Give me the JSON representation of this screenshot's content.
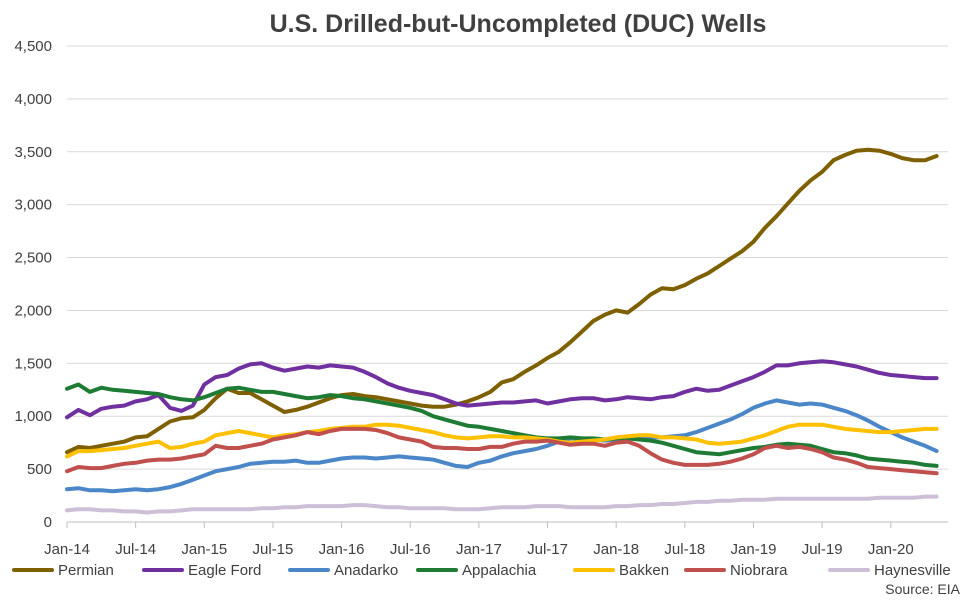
{
  "chart_data": {
    "type": "line",
    "title": "U.S. Drilled-but-Uncompleted (DUC) Wells",
    "source": "Source: EIA",
    "xlabel": "",
    "ylabel": "",
    "ylim": [
      0,
      4500
    ],
    "y_ticks": [
      0,
      500,
      1000,
      1500,
      2000,
      2500,
      3000,
      3500,
      4000,
      4500
    ],
    "y_tick_labels": [
      "0",
      "500",
      "1,000",
      "1,500",
      "2,000",
      "2,500",
      "3,000",
      "3,500",
      "4,000",
      "4,500"
    ],
    "x_tick_labels": [
      "Jan-14",
      "Jul-14",
      "Jan-15",
      "Jul-15",
      "Jan-16",
      "Jul-16",
      "Jan-17",
      "Jul-17",
      "Jan-18",
      "Jul-18",
      "Jan-19",
      "Jul-19",
      "Jan-20"
    ],
    "x_tick_months": [
      0,
      6,
      12,
      18,
      24,
      30,
      36,
      42,
      48,
      54,
      60,
      66,
      72
    ],
    "x_range_months": [
      0,
      77
    ],
    "grid": "horizontal",
    "legend_position": "bottom",
    "months": [
      "Jan-14",
      "Feb-14",
      "Mar-14",
      "Apr-14",
      "May-14",
      "Jun-14",
      "Jul-14",
      "Aug-14",
      "Sep-14",
      "Oct-14",
      "Nov-14",
      "Dec-14",
      "Jan-15",
      "Feb-15",
      "Mar-15",
      "Apr-15",
      "May-15",
      "Jun-15",
      "Jul-15",
      "Aug-15",
      "Sep-15",
      "Oct-15",
      "Nov-15",
      "Dec-15",
      "Jan-16",
      "Feb-16",
      "Mar-16",
      "Apr-16",
      "May-16",
      "Jun-16",
      "Jul-16",
      "Aug-16",
      "Sep-16",
      "Oct-16",
      "Nov-16",
      "Dec-16",
      "Jan-17",
      "Feb-17",
      "Mar-17",
      "Apr-17",
      "May-17",
      "Jun-17",
      "Jul-17",
      "Aug-17",
      "Sep-17",
      "Oct-17",
      "Nov-17",
      "Dec-17",
      "Jan-18",
      "Feb-18",
      "Mar-18",
      "Apr-18",
      "May-18",
      "Jun-18",
      "Jul-18",
      "Aug-18",
      "Sep-18",
      "Oct-18",
      "Nov-18",
      "Dec-18",
      "Jan-19",
      "Feb-19",
      "Mar-19",
      "Apr-19",
      "May-19",
      "Jun-19",
      "Jul-19",
      "Aug-19",
      "Sep-19",
      "Oct-19",
      "Nov-19",
      "Dec-19",
      "Jan-20",
      "Feb-20",
      "Mar-20",
      "Apr-20",
      "May-20"
    ],
    "series": [
      {
        "name": "Permian",
        "color": "#7f6000",
        "values": [
          660,
          710,
          700,
          720,
          740,
          760,
          800,
          810,
          880,
          950,
          980,
          990,
          1060,
          1170,
          1260,
          1220,
          1220,
          1160,
          1100,
          1040,
          1060,
          1090,
          1130,
          1170,
          1200,
          1210,
          1190,
          1180,
          1160,
          1140,
          1120,
          1100,
          1090,
          1090,
          1110,
          1140,
          1180,
          1230,
          1320,
          1350,
          1420,
          1480,
          1550,
          1610,
          1700,
          1800,
          1900,
          1960,
          2000,
          1980,
          2060,
          2150,
          2210,
          2200,
          2240,
          2300,
          2350,
          2420,
          2490,
          2560,
          2650,
          2780,
          2890,
          3010,
          3130,
          3230,
          3310,
          3420,
          3470,
          3510,
          3520,
          3510,
          3480,
          3440,
          3420,
          3420,
          3460
        ]
      },
      {
        "name": "Eagle Ford",
        "color": "#7030a0",
        "values": [
          990,
          1060,
          1010,
          1070,
          1090,
          1100,
          1140,
          1160,
          1200,
          1080,
          1050,
          1100,
          1300,
          1370,
          1390,
          1450,
          1490,
          1500,
          1460,
          1430,
          1450,
          1470,
          1460,
          1480,
          1470,
          1460,
          1420,
          1370,
          1310,
          1270,
          1240,
          1220,
          1200,
          1160,
          1120,
          1100,
          1110,
          1120,
          1130,
          1130,
          1140,
          1150,
          1120,
          1140,
          1160,
          1170,
          1170,
          1150,
          1160,
          1180,
          1170,
          1160,
          1180,
          1190,
          1230,
          1260,
          1240,
          1250,
          1290,
          1330,
          1370,
          1420,
          1480,
          1480,
          1500,
          1510,
          1520,
          1510,
          1490,
          1470,
          1440,
          1410,
          1390,
          1380,
          1370,
          1360,
          1360
        ]
      },
      {
        "name": "Anadarko",
        "color": "#4a86c8",
        "values": [
          310,
          320,
          300,
          300,
          290,
          300,
          310,
          300,
          310,
          330,
          360,
          400,
          440,
          480,
          500,
          520,
          550,
          560,
          570,
          570,
          580,
          560,
          560,
          580,
          600,
          610,
          610,
          600,
          610,
          620,
          610,
          600,
          590,
          560,
          530,
          520,
          560,
          580,
          620,
          650,
          670,
          690,
          720,
          760,
          790,
          790,
          780,
          770,
          780,
          790,
          800,
          800,
          800,
          810,
          820,
          850,
          890,
          930,
          970,
          1020,
          1080,
          1120,
          1150,
          1130,
          1110,
          1120,
          1110,
          1080,
          1050,
          1010,
          960,
          900,
          850,
          800,
          760,
          720,
          670
        ]
      },
      {
        "name": "Appalachia",
        "color": "#1e7b34",
        "values": [
          1260,
          1300,
          1230,
          1270,
          1250,
          1240,
          1230,
          1220,
          1210,
          1180,
          1160,
          1150,
          1180,
          1220,
          1260,
          1270,
          1250,
          1230,
          1230,
          1210,
          1190,
          1170,
          1180,
          1200,
          1190,
          1170,
          1160,
          1140,
          1120,
          1100,
          1080,
          1050,
          1000,
          970,
          940,
          910,
          900,
          880,
          860,
          840,
          820,
          800,
          790,
          790,
          800,
          790,
          790,
          780,
          790,
          790,
          780,
          770,
          750,
          720,
          690,
          660,
          650,
          640,
          660,
          680,
          700,
          710,
          730,
          740,
          730,
          720,
          690,
          660,
          650,
          630,
          600,
          590,
          580,
          570,
          560,
          540,
          530
        ]
      },
      {
        "name": "Bakken",
        "color": "#ffc000",
        "values": [
          620,
          670,
          670,
          680,
          690,
          700,
          720,
          740,
          760,
          700,
          710,
          740,
          760,
          820,
          840,
          860,
          840,
          820,
          800,
          820,
          830,
          850,
          860,
          880,
          890,
          900,
          900,
          920,
          920,
          910,
          890,
          870,
          850,
          820,
          800,
          790,
          800,
          810,
          810,
          800,
          800,
          790,
          780,
          760,
          750,
          760,
          770,
          780,
          800,
          810,
          820,
          820,
          800,
          800,
          790,
          780,
          750,
          740,
          750,
          760,
          790,
          820,
          860,
          900,
          920,
          920,
          920,
          900,
          880,
          870,
          860,
          850,
          850,
          860,
          870,
          880,
          880
        ]
      },
      {
        "name": "Niobrara",
        "color": "#c0504d",
        "values": [
          480,
          520,
          510,
          510,
          530,
          550,
          560,
          580,
          590,
          590,
          600,
          620,
          640,
          720,
          700,
          700,
          720,
          740,
          780,
          800,
          820,
          850,
          830,
          860,
          880,
          880,
          880,
          870,
          840,
          800,
          780,
          760,
          710,
          700,
          700,
          690,
          690,
          710,
          710,
          740,
          760,
          760,
          770,
          750,
          730,
          740,
          740,
          720,
          750,
          760,
          720,
          650,
          590,
          560,
          540,
          540,
          540,
          550,
          570,
          600,
          640,
          700,
          720,
          700,
          710,
          690,
          660,
          610,
          590,
          560,
          520,
          510,
          500,
          490,
          480,
          470,
          460
        ]
      },
      {
        "name": "Haynesville",
        "color": "#cdbfd8",
        "values": [
          110,
          120,
          120,
          110,
          110,
          100,
          100,
          90,
          100,
          100,
          110,
          120,
          120,
          120,
          120,
          120,
          120,
          130,
          130,
          140,
          140,
          150,
          150,
          150,
          150,
          160,
          160,
          150,
          140,
          140,
          130,
          130,
          130,
          130,
          120,
          120,
          120,
          130,
          140,
          140,
          140,
          150,
          150,
          150,
          140,
          140,
          140,
          140,
          150,
          150,
          160,
          160,
          170,
          170,
          180,
          190,
          190,
          200,
          200,
          210,
          210,
          210,
          220,
          220,
          220,
          220,
          220,
          220,
          220,
          220,
          220,
          230,
          230,
          230,
          230,
          240,
          240
        ]
      }
    ]
  }
}
